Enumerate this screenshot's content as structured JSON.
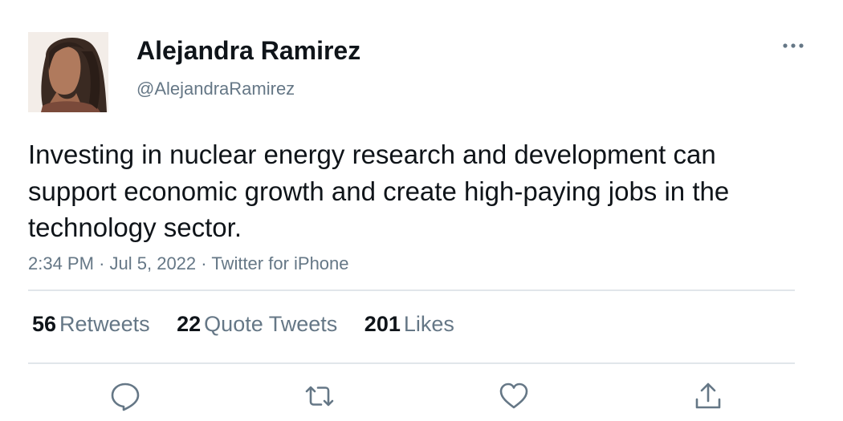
{
  "author": {
    "display_name": "Alejandra Ramirez",
    "handle": "@AlejandraRamirez"
  },
  "tweet": {
    "text": "Investing in nuclear energy research and development can support economic growth and create high-paying jobs in the technology sector.",
    "time": "2:34 PM",
    "date": "Jul 5, 2022",
    "source": "Twitter for iPhone",
    "separator": "·"
  },
  "stats": {
    "retweets": {
      "count": "56",
      "label": "Retweets"
    },
    "quote_tweets": {
      "count": "22",
      "label": "Quote Tweets"
    },
    "likes": {
      "count": "201",
      "label": "Likes"
    }
  },
  "icons": {
    "more": "more-dots-icon",
    "reply": "reply-icon",
    "retweet": "retweet-icon",
    "like": "heart-icon",
    "share": "share-icon"
  },
  "colors": {
    "text": "#0f1419",
    "secondary": "#657786",
    "divider": "#e1e6ea"
  }
}
